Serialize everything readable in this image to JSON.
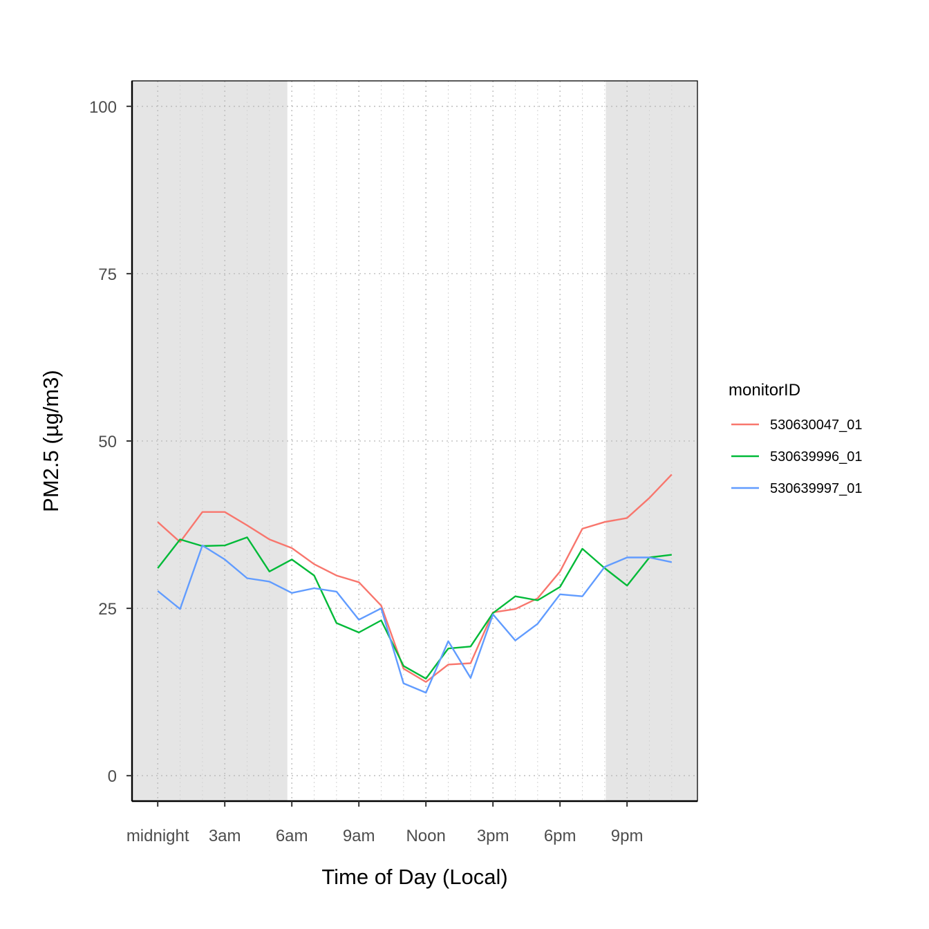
{
  "chart_data": {
    "type": "line",
    "xlabel": "Time of Day (Local)",
    "ylabel": "PM2.5 (µg/m3)",
    "x": [
      0,
      1,
      2,
      3,
      4,
      5,
      6,
      7,
      8,
      9,
      10,
      11,
      12,
      13,
      14,
      15,
      16,
      17,
      18,
      19,
      20,
      21,
      22,
      23
    ],
    "x_ticks": [
      {
        "value": 0,
        "label": "midnight"
      },
      {
        "value": 3,
        "label": "3am"
      },
      {
        "value": 6,
        "label": "6am"
      },
      {
        "value": 9,
        "label": "9am"
      },
      {
        "value": 12,
        "label": "Noon"
      },
      {
        "value": 15,
        "label": "3pm"
      },
      {
        "value": 18,
        "label": "6pm"
      },
      {
        "value": 21,
        "label": "9pm"
      }
    ],
    "y_ticks": [
      0,
      25,
      50,
      75,
      100
    ],
    "xlim": [
      -1.15,
      24.15
    ],
    "ylim": [
      -3.8,
      103.8
    ],
    "night_shading": [
      {
        "from": -1.15,
        "to": 5.8
      },
      {
        "from": 20.05,
        "to": 24.15
      }
    ],
    "grid": true,
    "legend": {
      "title": "monitorID",
      "position": "right"
    },
    "series": [
      {
        "name": "530630047_01",
        "color": "#F8766D",
        "values": [
          37.9,
          34.9,
          39.4,
          39.4,
          37.4,
          35.3,
          34.0,
          31.6,
          29.9,
          28.9,
          25.4,
          16.0,
          14.0,
          16.6,
          16.8,
          24.4,
          24.9,
          26.5,
          30.5,
          36.9,
          37.9,
          38.5,
          41.5,
          45.0
        ]
      },
      {
        "name": "530639996_01",
        "color": "#00BA38",
        "values": [
          31.0,
          35.3,
          34.3,
          34.4,
          35.6,
          30.5,
          32.3,
          29.9,
          22.8,
          21.4,
          23.2,
          16.4,
          14.5,
          19.0,
          19.3,
          24.3,
          26.8,
          26.2,
          28.2,
          33.9,
          31.0,
          28.4,
          32.6,
          33.0
        ]
      },
      {
        "name": "530639997_01",
        "color": "#619CFF",
        "values": [
          27.6,
          24.9,
          34.4,
          32.3,
          29.5,
          29.0,
          27.3,
          28.0,
          27.5,
          23.3,
          25.0,
          13.8,
          12.4,
          20.1,
          14.6,
          24.1,
          20.2,
          22.7,
          27.1,
          26.8,
          31.2,
          32.6,
          32.6,
          31.9
        ]
      }
    ]
  }
}
